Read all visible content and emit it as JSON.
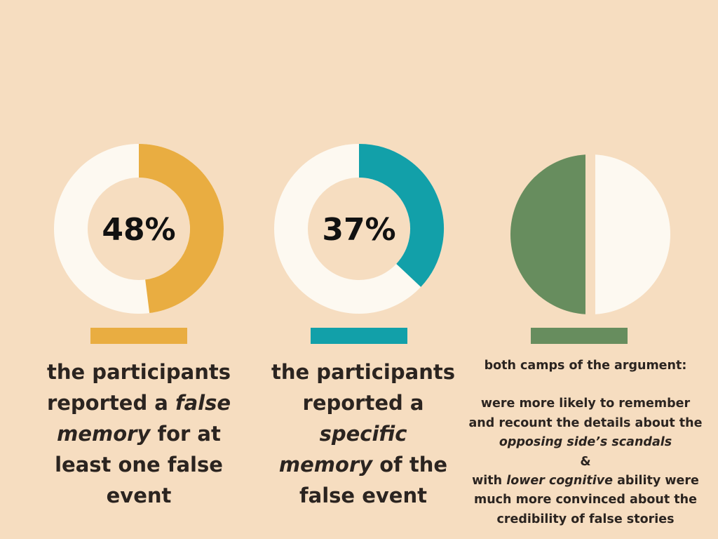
{
  "colors": {
    "background": "#f6ddc0",
    "ring_track": "#fdf9f1",
    "yellow": "#e9ad41",
    "teal": "#12a0a9",
    "green": "#678d5e"
  },
  "chart_data": [
    {
      "type": "pie",
      "style": "donut",
      "value": 48,
      "unit": "%",
      "label": "48%",
      "color": "#e9ad41",
      "caption": {
        "line1": "the participants",
        "line2_pre": "reported a ",
        "line2_em": "false",
        "line3_em": "memory",
        "line3_post": " for at",
        "line4": "least one false",
        "line5": "event"
      }
    },
    {
      "type": "pie",
      "style": "donut",
      "value": 37,
      "unit": "%",
      "label": "37%",
      "color": "#12a0a9",
      "caption": {
        "line1": "the participants",
        "line2": "reported a",
        "line3_em": "specific",
        "line4_em": "memory",
        "line4_post": " of the",
        "line5": "false event"
      }
    },
    {
      "type": "pie",
      "style": "split",
      "values": [
        50,
        50
      ],
      "color": "#678d5e",
      "caption": {
        "heading": "both camps of the argument:",
        "line1": "were more likely to remember",
        "line2": "and recount the details about the",
        "line3_em": "opposing side’s scandals",
        "line4": "&",
        "line5_pre": "with ",
        "line5_em": "lower cognitive",
        "line5_post": " ability were",
        "line6": "much more convinced about the",
        "line7": "credibility of false stories"
      }
    }
  ]
}
